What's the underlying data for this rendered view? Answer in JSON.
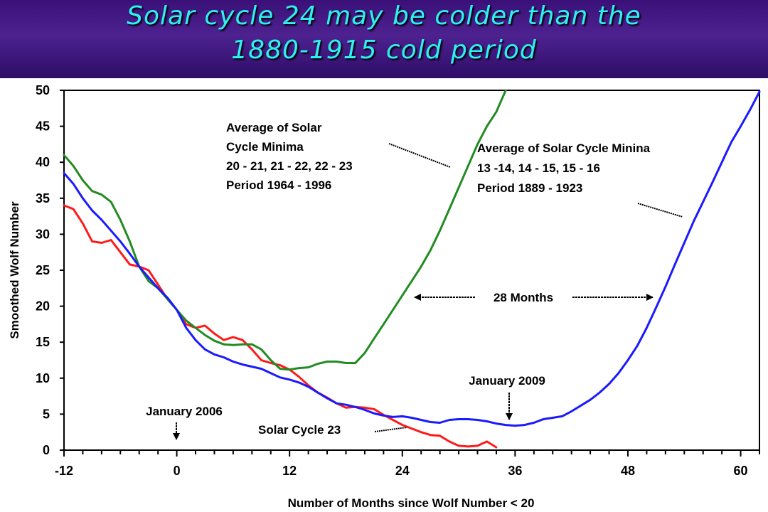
{
  "header": {
    "title_line1": "Solar cycle 24 may be colder than the",
    "title_line2": "1880-1915 cold period"
  },
  "colors": {
    "title_bar": "#3a1078",
    "title_text": "#2ef0f0",
    "red_series": "#ff1a1a",
    "green_series": "#228b22",
    "blue_series": "#1a1aff"
  },
  "chart_data": {
    "type": "line",
    "title": "Solar cycle 24 may be colder than the 1880-1915 cold period",
    "xlabel": "Number of Months since Wolf Number < 20",
    "ylabel": "Smoothed Wolf Number",
    "xlim": [
      -12,
      62
    ],
    "ylim": [
      0,
      50
    ],
    "xticks": [
      -12,
      0,
      12,
      24,
      36,
      48,
      60
    ],
    "yticks": [
      0,
      5,
      10,
      15,
      20,
      25,
      30,
      35,
      40,
      45,
      50
    ],
    "grid": false,
    "series": [
      {
        "name": "Solar Cycle 23",
        "color": "#ff1a1a",
        "points": [
          [
            -12,
            34
          ],
          [
            -11,
            33.5
          ],
          [
            -10,
            31.5
          ],
          [
            -9,
            29
          ],
          [
            -8,
            28.8
          ],
          [
            -7,
            29.2
          ],
          [
            -6,
            27.5
          ],
          [
            -5,
            25.8
          ],
          [
            -4,
            25.5
          ],
          [
            -3,
            25
          ],
          [
            -2,
            23
          ],
          [
            -1,
            21
          ],
          [
            0,
            19.5
          ],
          [
            1,
            17.5
          ],
          [
            2,
            17
          ],
          [
            3,
            17.3
          ],
          [
            4,
            16.2
          ],
          [
            5,
            15.3
          ],
          [
            6,
            15.7
          ],
          [
            7,
            15.3
          ],
          [
            8,
            14
          ],
          [
            9,
            12.5
          ],
          [
            10,
            12.1
          ],
          [
            11,
            11.8
          ],
          [
            12,
            11.2
          ],
          [
            13,
            10.2
          ],
          [
            14,
            9
          ],
          [
            15,
            8
          ],
          [
            16,
            7.3
          ],
          [
            17,
            6.5
          ],
          [
            18,
            5.9
          ],
          [
            19,
            6
          ],
          [
            20,
            5.9
          ],
          [
            21,
            5.7
          ],
          [
            22,
            4.9
          ],
          [
            23,
            4.2
          ],
          [
            24,
            3.5
          ],
          [
            25,
            3
          ],
          [
            26,
            2.5
          ],
          [
            27,
            2.1
          ],
          [
            28,
            2
          ],
          [
            29,
            1.2
          ],
          [
            30,
            0.6
          ],
          [
            31,
            0.5
          ],
          [
            32,
            0.6
          ],
          [
            33,
            1.2
          ],
          [
            34,
            0.4
          ]
        ]
      },
      {
        "name": "Average of Solar Cycle Minima 20 - 21, 21 - 22, 22 - 23 Period 1964 - 1996",
        "color": "#228b22",
        "points": [
          [
            -12,
            41
          ],
          [
            -11,
            39.5
          ],
          [
            -10,
            37.5
          ],
          [
            -9,
            36
          ],
          [
            -8,
            35.5
          ],
          [
            -7,
            34.5
          ],
          [
            -6,
            32
          ],
          [
            -5,
            29
          ],
          [
            -4,
            25.5
          ],
          [
            -3,
            23.5
          ],
          [
            -2,
            22.5
          ],
          [
            -1,
            21
          ],
          [
            0,
            19.5
          ],
          [
            1,
            18
          ],
          [
            2,
            17
          ],
          [
            3,
            16
          ],
          [
            4,
            15.2
          ],
          [
            5,
            14.7
          ],
          [
            6,
            14.6
          ],
          [
            7,
            14.7
          ],
          [
            8,
            14.7
          ],
          [
            9,
            14
          ],
          [
            10,
            12.5
          ],
          [
            11,
            11.3
          ],
          [
            12,
            11.2
          ],
          [
            13,
            11.4
          ],
          [
            14,
            11.5
          ],
          [
            15,
            12
          ],
          [
            16,
            12.3
          ],
          [
            17,
            12.3
          ],
          [
            18,
            12.1
          ],
          [
            19,
            12.1
          ],
          [
            20,
            13.5
          ],
          [
            21,
            15.5
          ],
          [
            22,
            17.5
          ],
          [
            23,
            19.5
          ],
          [
            24,
            21.5
          ],
          [
            25,
            23.5
          ],
          [
            26,
            25.5
          ],
          [
            27,
            27.8
          ],
          [
            28,
            30.5
          ],
          [
            29,
            33.5
          ],
          [
            30,
            36.5
          ],
          [
            31,
            39.5
          ],
          [
            32,
            42.5
          ],
          [
            33,
            45
          ],
          [
            34,
            47
          ],
          [
            35,
            50
          ]
        ]
      },
      {
        "name": "Average of Solar Cycle Minina 13 -14, 14 - 15, 15 - 16 Period 1889 - 1923",
        "color": "#1a1aff",
        "points": [
          [
            -12,
            38.5
          ],
          [
            -11,
            37
          ],
          [
            -10,
            35
          ],
          [
            -9,
            33.3
          ],
          [
            -8,
            32
          ],
          [
            -7,
            30.5
          ],
          [
            -6,
            29
          ],
          [
            -5,
            27.3
          ],
          [
            -4,
            25.5
          ],
          [
            -3,
            24
          ],
          [
            -2,
            22.5
          ],
          [
            -1,
            21.2
          ],
          [
            0,
            19.5
          ],
          [
            1,
            17
          ],
          [
            2,
            15.3
          ],
          [
            3,
            14
          ],
          [
            4,
            13.3
          ],
          [
            5,
            12.9
          ],
          [
            6,
            12.3
          ],
          [
            7,
            11.9
          ],
          [
            8,
            11.6
          ],
          [
            9,
            11.3
          ],
          [
            10,
            10.7
          ],
          [
            11,
            10.1
          ],
          [
            12,
            9.8
          ],
          [
            13,
            9.4
          ],
          [
            14,
            8.8
          ],
          [
            15,
            8
          ],
          [
            16,
            7.2
          ],
          [
            17,
            6.5
          ],
          [
            18,
            6.3
          ],
          [
            19,
            6
          ],
          [
            20,
            5.6
          ],
          [
            21,
            5.1
          ],
          [
            22,
            4.8
          ],
          [
            23,
            4.6
          ],
          [
            24,
            4.7
          ],
          [
            25,
            4.5
          ],
          [
            26,
            4.2
          ],
          [
            27,
            3.9
          ],
          [
            28,
            3.8
          ],
          [
            29,
            4.2
          ],
          [
            30,
            4.3
          ],
          [
            31,
            4.3
          ],
          [
            32,
            4.2
          ],
          [
            33,
            4
          ],
          [
            34,
            3.7
          ],
          [
            35,
            3.5
          ],
          [
            36,
            3.4
          ],
          [
            37,
            3.5
          ],
          [
            38,
            3.8
          ],
          [
            39,
            4.3
          ],
          [
            40,
            4.5
          ],
          [
            41,
            4.7
          ],
          [
            42,
            5.4
          ],
          [
            43,
            6.2
          ],
          [
            44,
            7
          ],
          [
            45,
            8
          ],
          [
            46,
            9.2
          ],
          [
            47,
            10.7
          ],
          [
            48,
            12.5
          ],
          [
            49,
            14.5
          ],
          [
            50,
            17
          ],
          [
            51,
            19.8
          ],
          [
            52,
            22.7
          ],
          [
            53,
            25.8
          ],
          [
            54,
            28.8
          ],
          [
            55,
            31.8
          ],
          [
            56,
            34.5
          ],
          [
            57,
            37.2
          ],
          [
            58,
            40
          ],
          [
            59,
            42.8
          ],
          [
            60,
            45
          ],
          [
            61,
            47.3
          ],
          [
            62,
            49.8
          ]
        ]
      }
    ],
    "annotations": {
      "green_label": [
        "Average of Solar",
        "Cycle Minima",
        "20 - 21, 21 - 22, 22 - 23",
        "Period 1964 - 1996"
      ],
      "blue_label": [
        "Average of Solar Cycle Minina",
        "13 -14, 14 - 15, 15 - 16",
        "Period 1889 - 1923"
      ],
      "months_label": "28 Months",
      "jan2006": "January 2006",
      "jan2009": "January 2009",
      "cycle23": "Solar Cycle 23"
    }
  }
}
